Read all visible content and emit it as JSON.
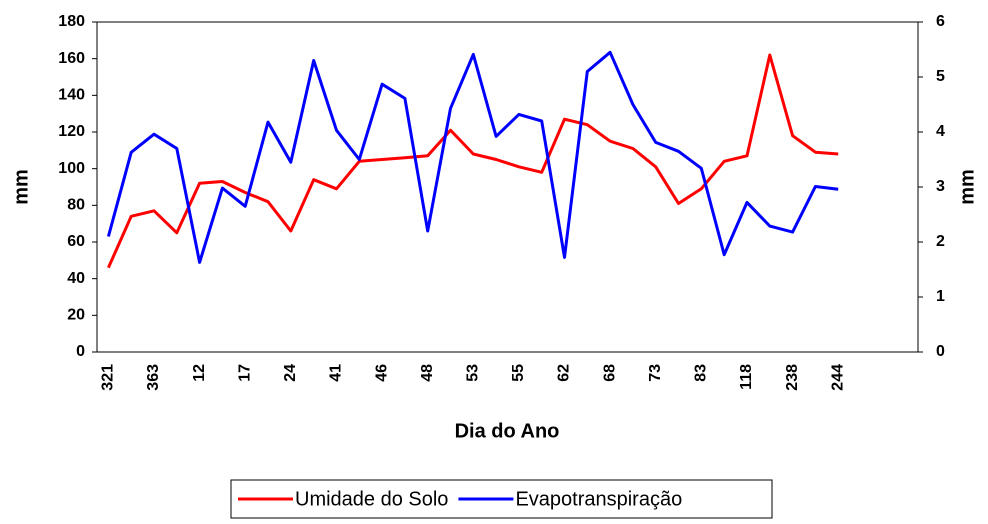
{
  "chart_data": {
    "type": "line",
    "x_label": "Dia do Ano",
    "y_label": "mm",
    "y2_label": "mm",
    "categories": [
      "321",
      null,
      "363",
      null,
      "12",
      null,
      "17",
      null,
      "24",
      null,
      "41",
      null,
      "46",
      null,
      "48",
      null,
      "53",
      null,
      "55",
      null,
      "62",
      null,
      "68",
      null,
      "73",
      null,
      "83",
      null,
      "118",
      null,
      "238",
      null,
      "244",
      null,
      null,
      null
    ],
    "series": [
      {
        "name": "Umidade do Solo",
        "color": "#ff0000",
        "values": [
          46,
          74,
          77,
          65,
          92,
          93,
          87,
          82,
          66,
          94,
          89,
          104,
          105,
          106,
          107,
          121,
          108,
          105,
          101,
          98,
          127,
          124,
          115,
          111,
          101,
          81,
          89,
          104,
          107,
          162,
          118,
          109,
          108,
          null,
          null,
          null
        ]
      },
      {
        "name": "Evapotranspiração",
        "color": "#0000ff",
        "axis": "y2",
        "values": [
          2.1,
          3.63,
          3.96,
          3.7,
          1.63,
          2.98,
          2.65,
          4.18,
          3.45,
          5.3,
          4.03,
          3.5,
          4.87,
          4.61,
          2.2,
          4.43,
          5.41,
          3.92,
          4.32,
          4.2,
          1.72,
          5.1,
          5.45,
          4.5,
          3.81,
          3.65,
          3.34,
          1.77,
          2.72,
          2.29,
          2.18,
          3.01,
          2.96,
          null,
          null,
          null
        ]
      }
    ],
    "ylim": [
      0,
      180
    ],
    "yticks": [
      0,
      20,
      40,
      60,
      80,
      100,
      120,
      140,
      160,
      180
    ],
    "y2lim": [
      0,
      6
    ],
    "y2ticks": [
      0,
      1,
      2,
      3,
      4,
      5,
      6
    ],
    "grid": false,
    "legend": "bottom"
  }
}
